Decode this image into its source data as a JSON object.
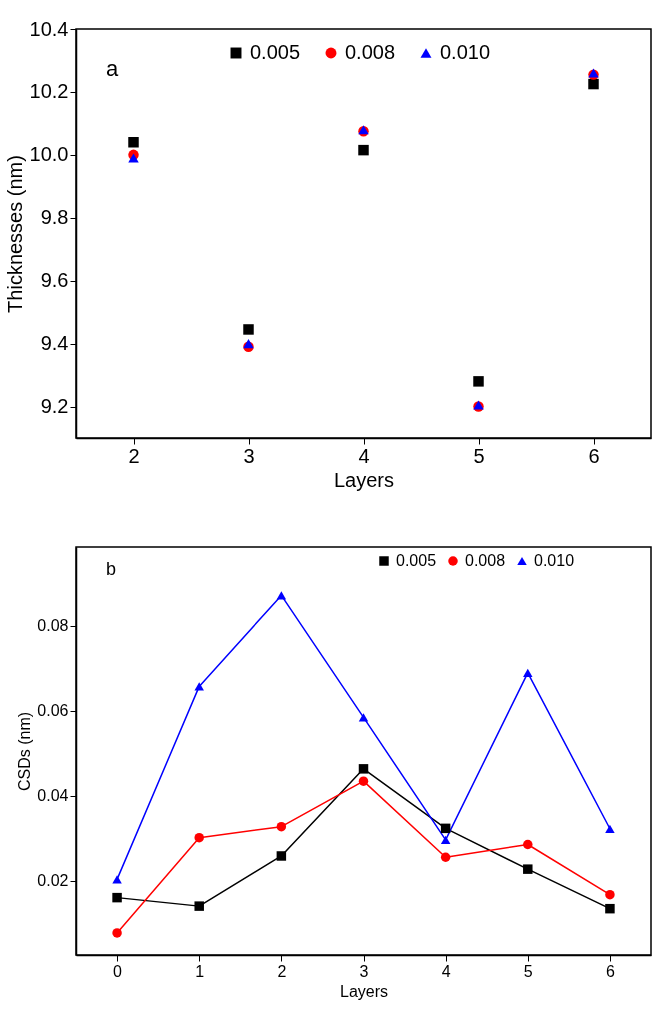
{
  "chart_data": [
    {
      "type": "scatter",
      "xlabel": "Layers",
      "ylabel": "Thicknesses (nm)",
      "annotations": [
        "a"
      ],
      "x": [
        2,
        3,
        4,
        5,
        6
      ],
      "xlim": [
        1.5,
        6.5
      ],
      "xticks": [
        2,
        3,
        4,
        5,
        6
      ],
      "ylim": [
        9.1,
        10.4
      ],
      "yticks": [
        9.2,
        9.4,
        9.6,
        9.8,
        {
          "value": 10,
          "label": "10.0"
        },
        10.2,
        10.4
      ],
      "grid": false,
      "legend": "top",
      "series": [
        {
          "name": "0.005",
          "color": "#000000",
          "marker": "square",
          "values": [
            10.04,
            9.445,
            10.015,
            9.28,
            10.225
          ]
        },
        {
          "name": "0.008",
          "color": "#ff0000",
          "marker": "circle",
          "values": [
            10.0,
            9.39,
            10.075,
            9.2,
            10.255
          ]
        },
        {
          "name": "0.010",
          "color": "#0000ff",
          "marker": "triangle",
          "values": [
            9.99,
            9.4,
            10.08,
            9.205,
            10.26
          ]
        }
      ]
    },
    {
      "type": "line",
      "xlabel": "Layers",
      "ylabel": "CSDs (nm)",
      "annotations": [
        "b"
      ],
      "x": [
        0,
        1,
        2,
        3,
        4,
        5,
        6
      ],
      "xlim": [
        -0.5,
        6.5
      ],
      "xticks": [
        0,
        1,
        2,
        3,
        4,
        5,
        6
      ],
      "ylim": [
        0.0025,
        0.0985
      ],
      "yticks": [
        0.02,
        0.04,
        0.06,
        0.08
      ],
      "grid": false,
      "legend": "top right",
      "line_style": "solid",
      "series": [
        {
          "name": "0.005",
          "color": "#000000",
          "marker": "square",
          "values": [
            0.016,
            0.014,
            0.0258,
            0.0463,
            0.0323,
            0.0227,
            0.0134
          ]
        },
        {
          "name": "0.008",
          "color": "#ff0000",
          "marker": "circle",
          "values": [
            0.0077,
            0.0301,
            0.0327,
            0.0434,
            0.0255,
            0.0285,
            0.0167
          ]
        },
        {
          "name": "0.010",
          "color": "#0000ff",
          "marker": "triangle",
          "values": [
            0.0203,
            0.0657,
            0.0871,
            0.0584,
            0.0296,
            0.0689,
            0.0322
          ]
        }
      ]
    }
  ]
}
